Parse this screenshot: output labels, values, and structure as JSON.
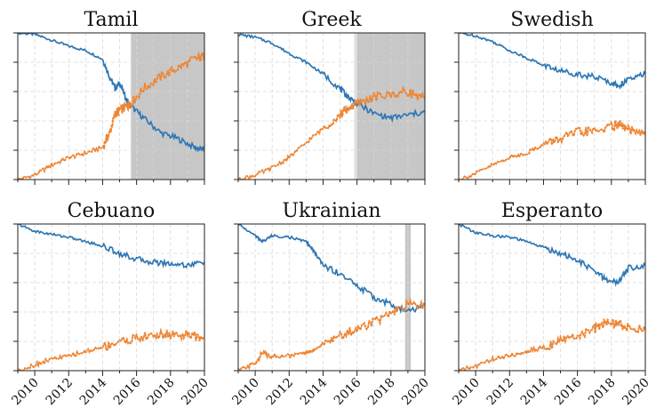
{
  "figure": {
    "x_tick_labels": [
      "2010",
      "2012",
      "2014",
      "2016",
      "2018",
      "2020"
    ]
  },
  "chart_data": [
    {
      "type": "line",
      "title": "Tamil",
      "xlim": [
        "2009-01",
        "2020-01"
      ],
      "ylim": [
        0,
        1
      ],
      "grid": true,
      "shaded_ranges": [
        [
          "2015-09",
          "2020-01"
        ]
      ],
      "x": [
        "2009-01",
        "2010-01",
        "2011-01",
        "2012-01",
        "2013-01",
        "2014-01",
        "2014-06",
        "2014-10",
        "2015-01",
        "2015-06",
        "2015-09",
        "2016-06",
        "2017-06",
        "2018-06",
        "2019-06",
        "2020-01"
      ],
      "series": [
        {
          "color": "#2f77b4",
          "style": "solid",
          "values": [
            1.0,
            0.99,
            0.95,
            0.91,
            0.88,
            0.82,
            0.7,
            0.62,
            0.66,
            0.54,
            0.5,
            0.42,
            0.32,
            0.28,
            0.22,
            0.2
          ]
        },
        {
          "color": "#ee8533",
          "style": "dotted",
          "values": [
            0.0,
            0.03,
            0.1,
            0.15,
            0.18,
            0.22,
            0.32,
            0.45,
            0.47,
            0.5,
            0.52,
            0.62,
            0.7,
            0.76,
            0.82,
            0.84
          ]
        }
      ]
    },
    {
      "type": "line",
      "title": "Greek",
      "xlim": [
        "2009-01",
        "2020-01"
      ],
      "ylim": [
        0,
        1
      ],
      "grid": true,
      "shaded_ranges": [
        [
          "2015-11",
          "2016-01"
        ],
        [
          "2016-01",
          "2020-01"
        ]
      ],
      "x": [
        "2009-01",
        "2010-01",
        "2011-01",
        "2012-01",
        "2013-01",
        "2014-01",
        "2015-01",
        "2015-06",
        "2016-01",
        "2017-01",
        "2018-01",
        "2019-01",
        "2020-01"
      ],
      "series": [
        {
          "color": "#2f77b4",
          "style": "solid",
          "values": [
            0.99,
            0.97,
            0.93,
            0.86,
            0.8,
            0.72,
            0.62,
            0.57,
            0.52,
            0.45,
            0.42,
            0.44,
            0.46
          ]
        },
        {
          "color": "#ee8533",
          "style": "dotted",
          "values": [
            0.0,
            0.03,
            0.08,
            0.15,
            0.25,
            0.35,
            0.44,
            0.48,
            0.52,
            0.56,
            0.58,
            0.6,
            0.55
          ]
        }
      ]
    },
    {
      "type": "line",
      "title": "Swedish",
      "xlim": [
        "2009-01",
        "2020-01"
      ],
      "ylim": [
        0,
        1
      ],
      "grid": true,
      "x": [
        "2009-01",
        "2010-01",
        "2011-01",
        "2012-01",
        "2013-01",
        "2014-01",
        "2015-01",
        "2016-01",
        "2017-01",
        "2018-01",
        "2018-06",
        "2019-01",
        "2020-01"
      ],
      "series": [
        {
          "color": "#2f77b4",
          "style": "solid",
          "values": [
            1.0,
            0.98,
            0.94,
            0.88,
            0.83,
            0.78,
            0.74,
            0.72,
            0.7,
            0.66,
            0.64,
            0.68,
            0.72
          ]
        },
        {
          "color": "#ee8533",
          "style": "dotted",
          "values": [
            0.0,
            0.04,
            0.1,
            0.15,
            0.18,
            0.24,
            0.28,
            0.32,
            0.33,
            0.36,
            0.38,
            0.34,
            0.3
          ]
        }
      ]
    },
    {
      "type": "line",
      "title": "Cebuano",
      "xlim": [
        "2009-01",
        "2020-01"
      ],
      "ylim": [
        0,
        1
      ],
      "grid": true,
      "x": [
        "2009-01",
        "2010-01",
        "2011-01",
        "2012-01",
        "2013-01",
        "2014-01",
        "2015-01",
        "2016-01",
        "2017-01",
        "2018-01",
        "2019-01",
        "2020-01"
      ],
      "series": [
        {
          "color": "#2f77b4",
          "style": "solid",
          "values": [
            1.0,
            0.95,
            0.93,
            0.91,
            0.88,
            0.85,
            0.8,
            0.76,
            0.74,
            0.73,
            0.72,
            0.74
          ]
        },
        {
          "color": "#ee8533",
          "style": "dotted",
          "values": [
            0.0,
            0.04,
            0.08,
            0.1,
            0.13,
            0.16,
            0.2,
            0.22,
            0.24,
            0.25,
            0.24,
            0.22
          ]
        }
      ]
    },
    {
      "type": "line",
      "title": "Ukrainian",
      "xlim": [
        "2009-01",
        "2020-01"
      ],
      "ylim": [
        0,
        1
      ],
      "grid": true,
      "shaded_ranges": [
        [
          "2018-11",
          "2019-03"
        ]
      ],
      "x": [
        "2009-01",
        "2010-01",
        "2010-06",
        "2011-01",
        "2012-01",
        "2013-01",
        "2013-06",
        "2014-01",
        "2015-01",
        "2016-01",
        "2017-01",
        "2018-01",
        "2019-01",
        "2020-01"
      ],
      "series": [
        {
          "color": "#2f77b4",
          "style": "solid",
          "values": [
            1.0,
            0.92,
            0.88,
            0.92,
            0.91,
            0.88,
            0.82,
            0.72,
            0.66,
            0.58,
            0.5,
            0.45,
            0.4,
            0.45
          ]
        },
        {
          "color": "#ee8533",
          "style": "dotted",
          "values": [
            0.0,
            0.05,
            0.12,
            0.1,
            0.1,
            0.12,
            0.14,
            0.18,
            0.24,
            0.28,
            0.34,
            0.38,
            0.45,
            0.44
          ]
        }
      ]
    },
    {
      "type": "line",
      "title": "Esperanto",
      "xlim": [
        "2009-01",
        "2020-01"
      ],
      "ylim": [
        0,
        1
      ],
      "grid": true,
      "x": [
        "2009-01",
        "2010-01",
        "2011-01",
        "2012-01",
        "2013-01",
        "2014-01",
        "2015-01",
        "2016-01",
        "2017-01",
        "2017-09",
        "2018-06",
        "2019-01",
        "2020-01"
      ],
      "series": [
        {
          "color": "#2f77b4",
          "style": "solid",
          "values": [
            1.0,
            0.94,
            0.92,
            0.91,
            0.88,
            0.84,
            0.8,
            0.75,
            0.68,
            0.62,
            0.6,
            0.7,
            0.72
          ]
        },
        {
          "color": "#ee8533",
          "style": "dotted",
          "values": [
            0.0,
            0.03,
            0.08,
            0.1,
            0.13,
            0.16,
            0.2,
            0.24,
            0.28,
            0.33,
            0.32,
            0.29,
            0.28
          ]
        }
      ]
    }
  ]
}
